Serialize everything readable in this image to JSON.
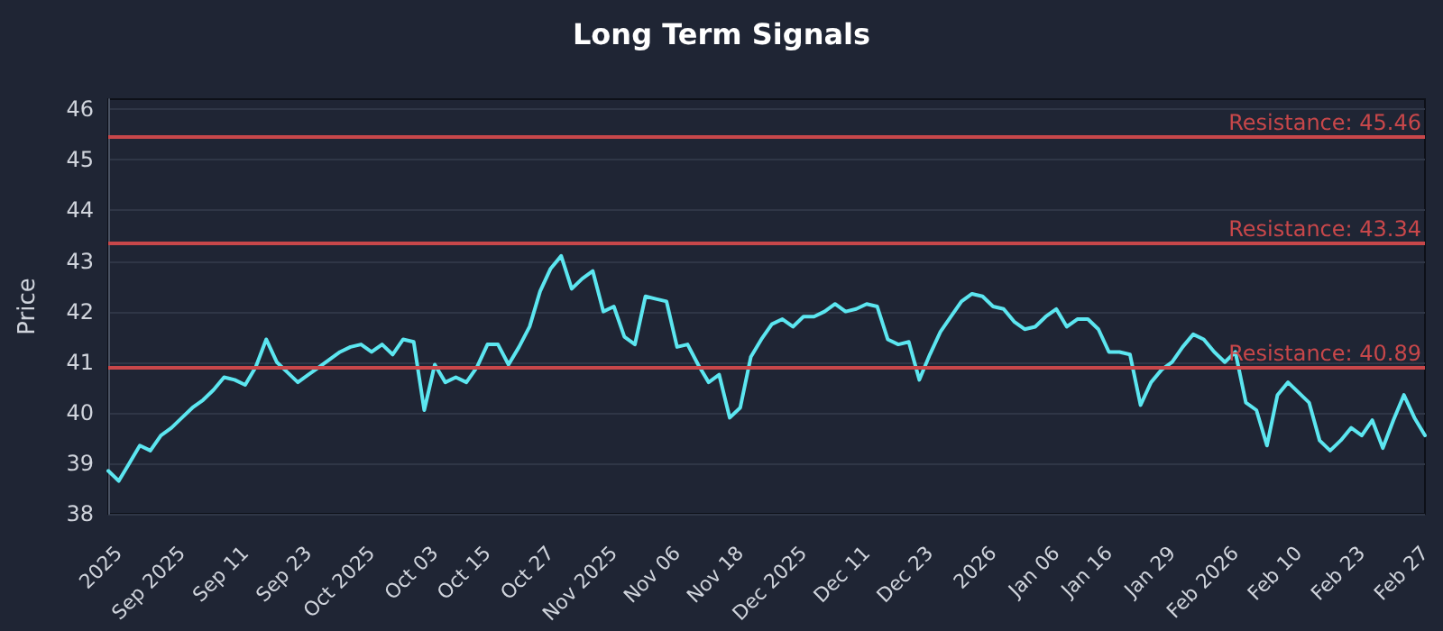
{
  "chart_data": {
    "type": "line",
    "title": "Long Term Signals",
    "ylabel": "Price",
    "categories": [
      null,
      "2025",
      null,
      null,
      null,
      null,
      null,
      "Sep 2025",
      null,
      null,
      null,
      null,
      null,
      "Sep 11",
      null,
      null,
      null,
      null,
      null,
      "Sep 23",
      null,
      null,
      null,
      null,
      null,
      "Oct 2025",
      null,
      null,
      null,
      null,
      null,
      "Oct 03",
      null,
      null,
      null,
      null,
      "Oct 15",
      null,
      null,
      null,
      null,
      null,
      "Oct 27",
      null,
      null,
      null,
      null,
      null,
      "Nov 2025",
      null,
      null,
      null,
      null,
      null,
      "Nov 06",
      null,
      null,
      null,
      null,
      null,
      "Nov 18",
      null,
      null,
      null,
      null,
      null,
      "Dec 2025",
      null,
      null,
      null,
      null,
      null,
      "Dec 11",
      null,
      null,
      null,
      null,
      null,
      "Dec 23",
      null,
      null,
      null,
      null,
      null,
      "2026",
      null,
      null,
      null,
      null,
      null,
      "Jan 06",
      null,
      null,
      null,
      null,
      "Jan 16",
      null,
      null,
      null,
      null,
      null,
      "Jan 29",
      null,
      null,
      null,
      null,
      null,
      "Feb 2026",
      null,
      null,
      null,
      null,
      null,
      "Feb 10",
      null,
      null,
      null,
      null,
      null,
      "Feb 23",
      null,
      null,
      null,
      null,
      null,
      "Feb 27"
    ],
    "series": [
      {
        "color": "#5ce6f0",
        "values": [
          38.85,
          38.65,
          39.0,
          39.35,
          39.25,
          39.55,
          39.7,
          39.9,
          40.1,
          40.25,
          40.45,
          40.7,
          40.65,
          40.55,
          40.9,
          41.45,
          41.0,
          40.8,
          40.6,
          40.75,
          40.9,
          41.05,
          41.2,
          41.3,
          41.35,
          41.2,
          41.35,
          41.15,
          41.45,
          41.4,
          40.05,
          40.95,
          40.6,
          40.7,
          40.6,
          40.9,
          41.35,
          41.35,
          40.95,
          41.3,
          41.7,
          42.4,
          42.85,
          43.1,
          42.45,
          42.65,
          42.8,
          42.0,
          42.1,
          41.5,
          41.35,
          42.3,
          42.25,
          42.2,
          41.3,
          41.35,
          40.95,
          40.6,
          40.75,
          39.9,
          40.1,
          41.1,
          41.45,
          41.75,
          41.85,
          41.7,
          41.9,
          41.9,
          42.0,
          42.15,
          42.0,
          42.05,
          42.15,
          42.1,
          41.45,
          41.35,
          41.4,
          40.65,
          41.15,
          41.6,
          41.9,
          42.2,
          42.35,
          42.3,
          42.1,
          42.05,
          41.8,
          41.65,
          41.7,
          41.9,
          42.05,
          41.7,
          41.85,
          41.85,
          41.65,
          41.2,
          41.2,
          41.15,
          40.15,
          40.6,
          40.85,
          41.0,
          41.3,
          41.55,
          41.45,
          41.2,
          41.0,
          41.2,
          40.2,
          40.05,
          39.35,
          40.35,
          40.6,
          40.4,
          40.2,
          39.45,
          39.25,
          39.45,
          39.7,
          39.55,
          39.85,
          39.3,
          39.85,
          40.35,
          39.9,
          39.55
        ]
      }
    ],
    "ylim": [
      38,
      46.2
    ],
    "yticks": [
      38,
      39,
      40,
      41,
      42,
      43,
      44,
      45,
      46
    ],
    "grid": "y",
    "marker": "none",
    "line_style": "solid",
    "ref_lines": [
      {
        "axis": "y",
        "value": 45.46,
        "label": "Resistance: 45.46",
        "color": "#c8474a"
      },
      {
        "axis": "y",
        "value": 43.34,
        "label": "Resistance: 43.34",
        "color": "#c8474a"
      },
      {
        "axis": "y",
        "value": 40.89,
        "label": "Resistance: 40.89",
        "color": "#c8474a"
      }
    ]
  }
}
